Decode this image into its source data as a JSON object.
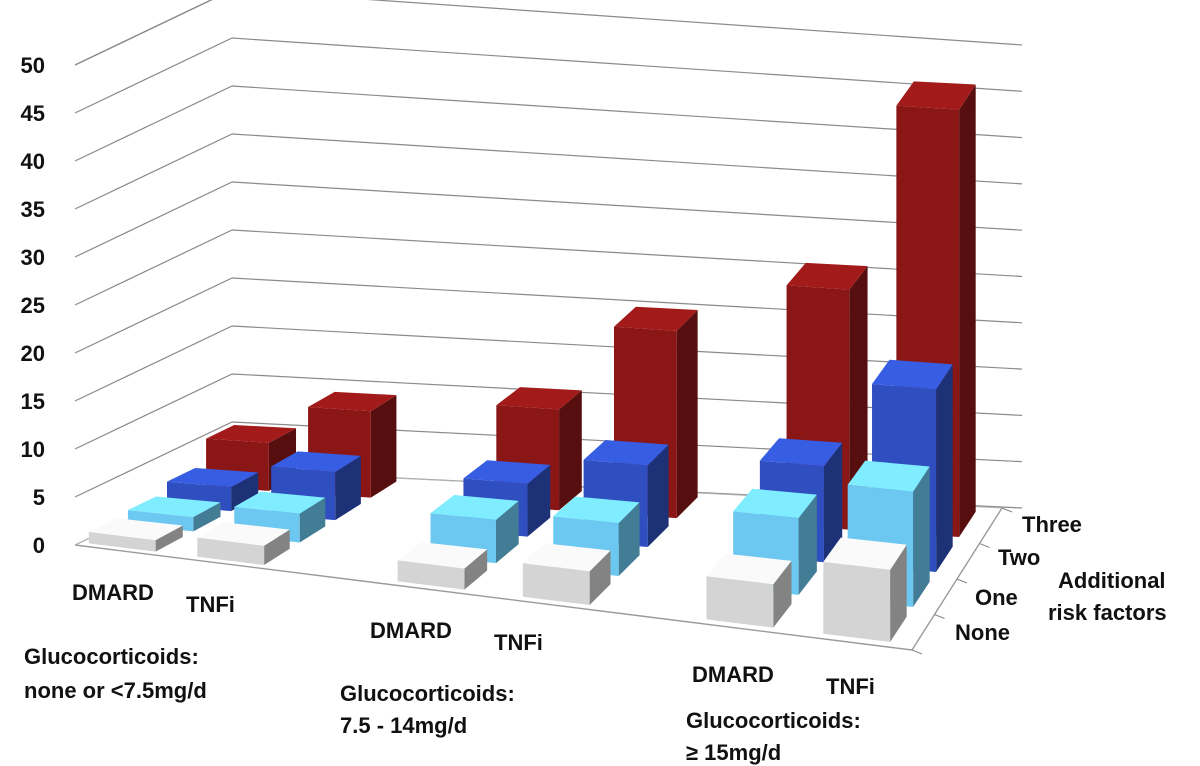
{
  "chart_data": {
    "type": "bar",
    "subtype": "3d-grouped",
    "title": "",
    "ylabel": "",
    "ylim": [
      0,
      50
    ],
    "y_ticks": [
      "0",
      "5",
      "10",
      "15",
      "20",
      "25",
      "30",
      "35",
      "40",
      "45",
      "50"
    ],
    "depth_axis_title_line1": "Additional",
    "depth_axis_title_line2": "risk factors",
    "depth_labels": [
      "None",
      "One",
      "Two",
      "Three"
    ],
    "treatment_labels": [
      "DMARD",
      "TNFi"
    ],
    "group_labels": [
      [
        "Glucocorticoids:",
        "none or <7.5mg/d"
      ],
      [
        "Glucocorticoids:",
        "7.5 - 14mg/d"
      ],
      [
        "Glucocorticoids:",
        "≥ 15mg/d"
      ]
    ],
    "series": [
      {
        "name": "None",
        "color": "#d4d4d4",
        "values": [
          1.2,
          2.0,
          2.2,
          3.5,
          4.5,
          7.5
        ]
      },
      {
        "name": "One",
        "color": "#6cc8f0",
        "values": [
          1.5,
          3.0,
          4.5,
          5.5,
          8.0,
          12.0
        ]
      },
      {
        "name": "Two",
        "color": "#2f4fc0",
        "values": [
          2.5,
          5.0,
          5.5,
          8.5,
          10.0,
          19.0
        ]
      },
      {
        "name": "Three",
        "color": "#8a1616",
        "values": [
          5.0,
          9.0,
          10.5,
          19.5,
          25.0,
          44.5
        ]
      }
    ]
  }
}
